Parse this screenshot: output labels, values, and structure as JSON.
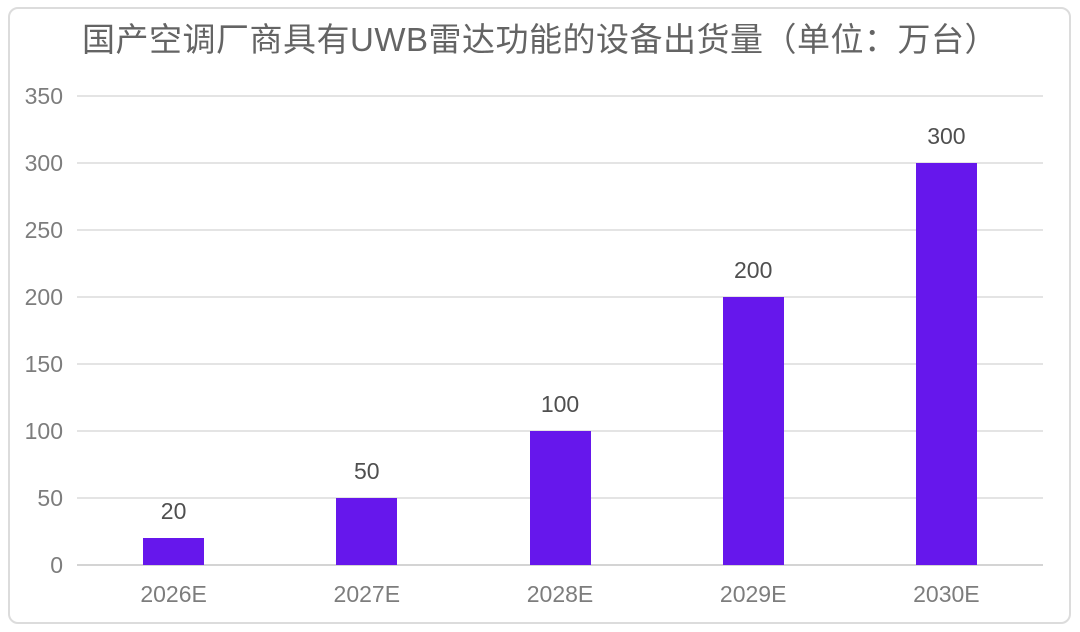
{
  "chart_data": {
    "type": "bar",
    "title": "国产空调厂商具有UWB雷达功能的设备出货量（单位：万台）",
    "categories": [
      "2026E",
      "2027E",
      "2028E",
      "2029E",
      "2030E"
    ],
    "values": [
      20,
      50,
      100,
      200,
      300
    ],
    "data_labels": [
      "20",
      "50",
      "100",
      "200",
      "300"
    ],
    "ytick_labels": [
      "0",
      "50",
      "100",
      "150",
      "200",
      "250",
      "300",
      "350"
    ],
    "yticks": [
      0,
      50,
      100,
      150,
      200,
      250,
      300,
      350
    ],
    "ylim": [
      0,
      350
    ],
    "xlabel": "",
    "ylabel": "",
    "grid": true,
    "legend_position": "none",
    "colors": {
      "bar": "#6617EC",
      "title_text": "#646464",
      "axis_text": "#7d7d7d",
      "data_label_text": "#4f4f4f",
      "gridline": "#e4e4e4",
      "axis_line": "#d4d4d4",
      "frame_border": "#dcdcdc",
      "background": "#ffffff"
    }
  }
}
